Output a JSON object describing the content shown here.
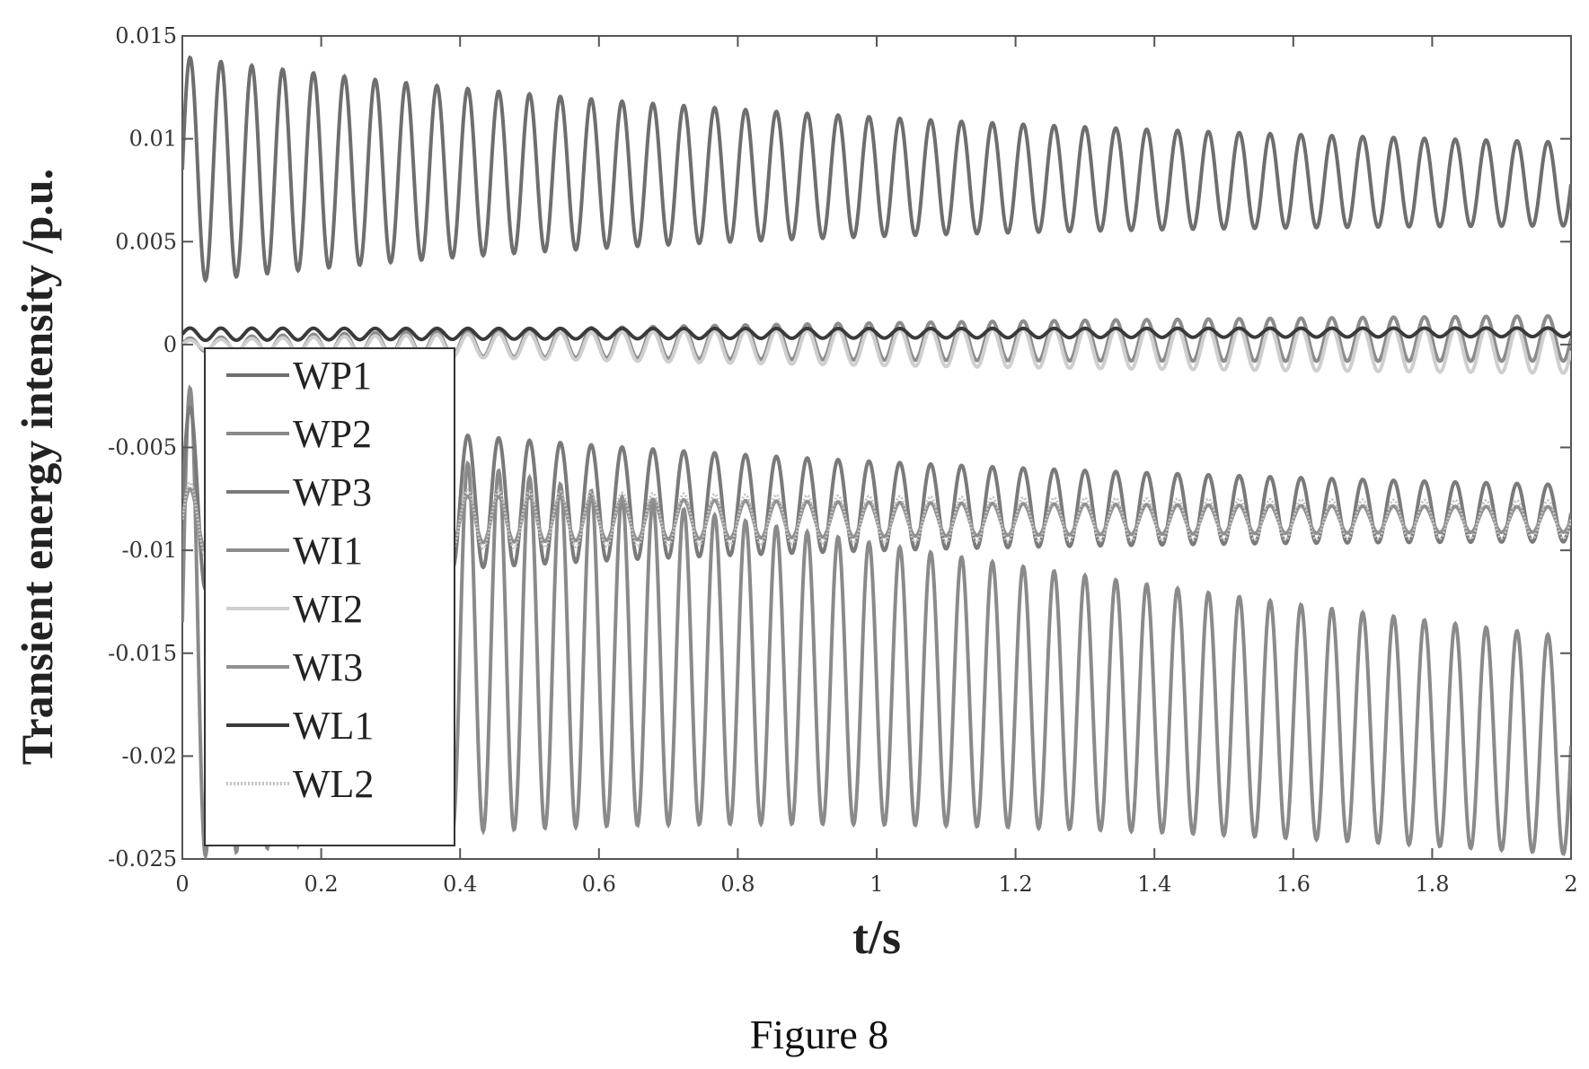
{
  "chart_data": {
    "type": "line",
    "title": "",
    "xlabel": "t/s",
    "ylabel": "Transient energy intensity  /p.u.",
    "caption": "Figure 8",
    "xlim": [
      0,
      2
    ],
    "ylim": [
      -0.025,
      0.015
    ],
    "x_ticks": [
      0,
      0.2,
      0.4,
      0.6,
      0.8,
      1,
      1.2,
      1.4,
      1.6,
      1.8,
      2
    ],
    "x_tick_labels": [
      "0",
      "0.2",
      "0.4",
      "0.6",
      "0.8",
      "1",
      "1.2",
      "1.4",
      "1.6",
      "1.8",
      "2"
    ],
    "y_ticks": [
      0.015,
      0.01,
      0.005,
      0,
      -0.005,
      -0.01,
      -0.015,
      -0.02,
      -0.025
    ],
    "y_tick_labels": [
      "0.015",
      "0.01",
      "0.005",
      "0",
      "-0.005",
      "-0.01",
      "-0.015",
      "-0.02",
      "-0.025"
    ],
    "grid": false,
    "legend_position": "left",
    "series": [
      {
        "name": "WP1",
        "color": "#6e6e6e",
        "stroke_style": "solid",
        "oscillation": {
          "frequency_hz": 22.5,
          "mean_start": 0.0085,
          "mean_end": 0.0078,
          "amplitude_start": 0.0055,
          "amplitude_end": 0.0016
        }
      },
      {
        "name": "WP2",
        "color": "#8a8a8a",
        "stroke_style": "solid",
        "oscillation": {
          "frequency_hz": 22.5,
          "mean_start": -0.0135,
          "mean_end": -0.0195,
          "amplitude_start": 0.0115,
          "amplitude_end": 0.0045
        }
      },
      {
        "name": "WP3",
        "color": "#7a7a7a",
        "stroke_style": "solid",
        "oscillation": {
          "frequency_hz": 22.5,
          "mean_start": -0.0075,
          "mean_end": -0.0082,
          "amplitude_start": 0.0045,
          "amplitude_end": 0.001
        }
      },
      {
        "name": "WI1",
        "color": "#8c8c8c",
        "stroke_style": "solid",
        "oscillation": {
          "frequency_hz": 22.5,
          "mean_start": 0.0,
          "mean_end": 0.0003,
          "amplitude_start": 0.0003,
          "amplitude_end": 0.0012
        }
      },
      {
        "name": "WI2",
        "color": "#cfcfcf",
        "stroke_style": "solid",
        "oscillation": {
          "frequency_hz": 22.5,
          "mean_start": 0.0,
          "mean_end": -0.0003,
          "amplitude_start": 0.0002,
          "amplitude_end": 0.0012
        }
      },
      {
        "name": "WI3",
        "color": "#909090",
        "stroke_style": "solid",
        "oscillation": {
          "frequency_hz": 22.5,
          "mean_start": -0.0085,
          "mean_end": -0.0085,
          "amplitude_start": 0.0015,
          "amplitude_end": 0.0005
        }
      },
      {
        "name": "WL1",
        "color": "#3a3a3a",
        "stroke_style": "solid",
        "oscillation": {
          "frequency_hz": 22.5,
          "mean_start": 0.0005,
          "mean_end": 0.0006,
          "amplitude_start": 0.0003,
          "amplitude_end": 0.0002
        }
      },
      {
        "name": "WL2",
        "color": "#c4c4c4",
        "stroke_style": "dotted",
        "oscillation": {
          "frequency_hz": 22.5,
          "mean_start": -0.0085,
          "mean_end": -0.0085,
          "amplitude_start": 0.0018,
          "amplitude_end": 0.0008
        }
      }
    ]
  }
}
